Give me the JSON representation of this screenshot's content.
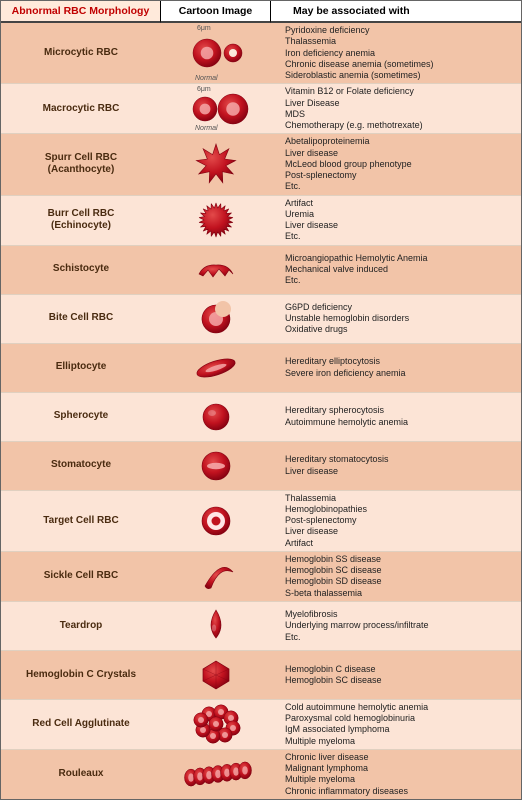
{
  "headers": {
    "name": "Abnormal RBC Morphology",
    "img": "Cartoon Image",
    "assoc": "May be associated with"
  },
  "rows": [
    {
      "name": "Microcytic RBC",
      "icon": "micro",
      "label6": "6μm",
      "labelN": "Normal",
      "assoc": [
        "Pyridoxine deficiency",
        "Thalassemia",
        "Iron deficiency anemia",
        "Chronic disease anemia (sometimes)",
        "Sideroblastic anemia (sometimes)"
      ]
    },
    {
      "name": "Macrocytic RBC",
      "icon": "macro",
      "label6": "6μm",
      "labelN": "Normal",
      "assoc": [
        "Vitamin B12 or Folate deficiency",
        "Liver Disease",
        "MDS",
        "Chemotherapy (e.g. methotrexate)"
      ]
    },
    {
      "name": "Spurr Cell RBC\n(Acanthocyte)",
      "icon": "acantho",
      "assoc": [
        "Abetalipoproteinemia",
        "Liver disease",
        "McLeod  blood group phenotype",
        "Post-splenectomy",
        "Etc."
      ]
    },
    {
      "name": "Burr Cell RBC\n(Echinocyte)",
      "icon": "echino",
      "assoc": [
        "Artifact",
        "Uremia",
        "Liver disease",
        "Etc."
      ]
    },
    {
      "name": "Schistocyte",
      "icon": "schisto",
      "assoc": [
        "Microangiopathic Hemolytic Anemia",
        "Mechanical valve induced",
        "Etc."
      ]
    },
    {
      "name": "Bite Cell RBC",
      "icon": "bite",
      "assoc": [
        "G6PD deficiency",
        "Unstable hemoglobin disorders",
        "Oxidative drugs"
      ]
    },
    {
      "name": "Elliptocyte",
      "icon": "ellipse",
      "assoc": [
        "Hereditary elliptocytosis",
        "Severe iron deficiency anemia"
      ]
    },
    {
      "name": "Spherocyte",
      "icon": "sphere",
      "assoc": [
        "Hereditary spherocytosis",
        "Autoimmune hemolytic anemia"
      ]
    },
    {
      "name": "Stomatocyte",
      "icon": "stoma",
      "assoc": [
        "Hereditary stomatocytosis",
        "Liver disease"
      ]
    },
    {
      "name": "Target Cell RBC",
      "icon": "target",
      "assoc": [
        "Thalassemia",
        "Hemoglobinopathies",
        "Post-splenectomy",
        "Liver disease",
        "Artifact"
      ]
    },
    {
      "name": "Sickle Cell RBC",
      "icon": "sickle",
      "assoc": [
        "Hemoglobin SS disease",
        "Hemoglobin SC disease",
        "Hemoglobin SD disease",
        "S-beta thalassemia"
      ]
    },
    {
      "name": "Teardrop",
      "icon": "tear",
      "assoc": [
        "Myelofibrosis",
        "Underlying marrow process/infiltrate",
        "Etc."
      ]
    },
    {
      "name": "Hemoglobin C Crystals",
      "icon": "crystal",
      "assoc": [
        "Hemoglobin C disease",
        "Hemoglobin SC disease"
      ]
    },
    {
      "name": "Red Cell Agglutinate",
      "icon": "agglut",
      "assoc": [
        "Cold autoimmune hemolytic anemia",
        "Paroxysmal cold hemoglobinuria",
        "IgM associated lymphoma",
        "Multiple myeloma"
      ]
    },
    {
      "name": "Rouleaux",
      "icon": "rouleaux",
      "assoc": [
        "Chronic liver disease",
        "Malignant lymphoma",
        "Multiple myeloma",
        "Chronic inflammatory diseases"
      ]
    }
  ],
  "colors": {
    "rbc": "#c1121f",
    "rbcDark": "#800010",
    "rbcLight": "#e34a4a",
    "rbcPale": "#f5a7a7"
  }
}
